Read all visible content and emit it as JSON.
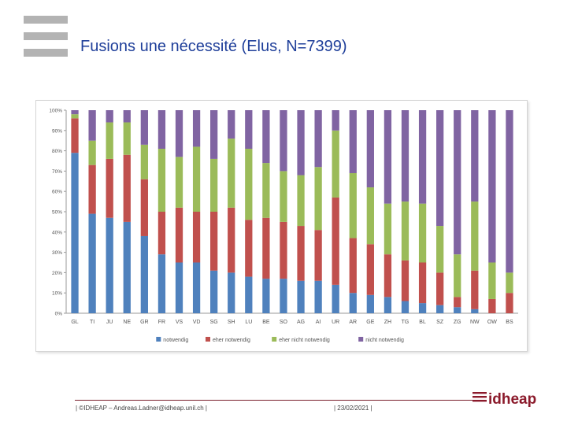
{
  "slide": {
    "title": "Fusions une nécessité (Elus, N=7399)"
  },
  "footer": {
    "left": "| ©IDHEAP – Andreas.Ladner@idheap.unil.ch |",
    "date": "| 23/02/2021 |",
    "brand": "idheap",
    "brand_color": "#8b1a2b"
  },
  "chart_data": {
    "type": "bar",
    "stacked": true,
    "categories": [
      "GL",
      "TI",
      "JU",
      "NE",
      "GR",
      "FR",
      "VS",
      "VD",
      "SG",
      "SH",
      "LU",
      "BE",
      "SO",
      "AG",
      "AI",
      "UR",
      "AR",
      "GE",
      "ZH",
      "TG",
      "BL",
      "SZ",
      "ZG",
      "NW",
      "OW",
      "BS"
    ],
    "series": [
      {
        "name": "notwendig",
        "color": "#4f81bd",
        "values": [
          79,
          49,
          47,
          45,
          38,
          29,
          25,
          25,
          21,
          20,
          18,
          17,
          17,
          16,
          16,
          14,
          10,
          9,
          8,
          6,
          5,
          4,
          3,
          2,
          0,
          0
        ]
      },
      {
        "name": "eher notwendig",
        "color": "#c0504d",
        "values": [
          17,
          24,
          29,
          33,
          28,
          21,
          27,
          25,
          29,
          32,
          28,
          30,
          28,
          27,
          25,
          43,
          27,
          25,
          21,
          20,
          20,
          16,
          5,
          19,
          7,
          10
        ]
      },
      {
        "name": "eher nicht notwendig",
        "color": "#9bbb59",
        "values": [
          2,
          12,
          18,
          16,
          17,
          31,
          25,
          32,
          26,
          34,
          35,
          27,
          25,
          25,
          31,
          33,
          32,
          28,
          25,
          29,
          29,
          23,
          21,
          34,
          18,
          10
        ]
      },
      {
        "name": "nicht notwendig",
        "color": "#8064a2",
        "values": [
          2,
          15,
          6,
          6,
          17,
          19,
          23,
          18,
          24,
          14,
          19,
          26,
          30,
          32,
          28,
          10,
          31,
          38,
          46,
          45,
          46,
          57,
          71,
          45,
          75,
          80
        ]
      }
    ],
    "y_ticks": [
      "0%",
      "10%",
      "20%",
      "30%",
      "40%",
      "50%",
      "60%",
      "70%",
      "80%",
      "90%",
      "100%"
    ],
    "ylim": [
      0,
      100
    ],
    "grid": false,
    "legend_position": "bottom"
  }
}
